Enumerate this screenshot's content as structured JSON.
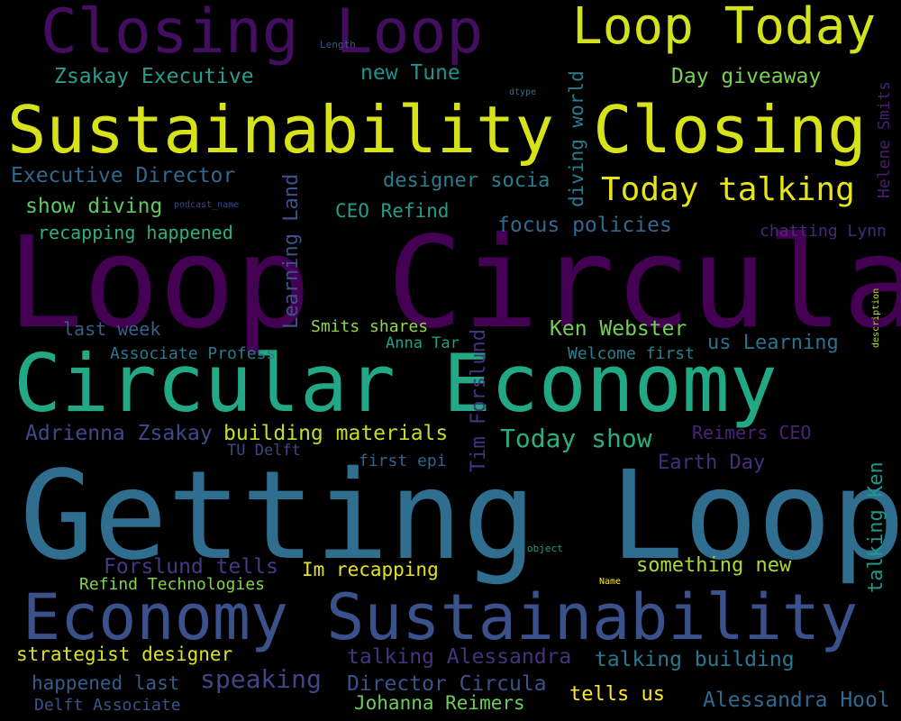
{
  "colors": {
    "background": "#000000",
    "palette": [
      "#440154",
      "#482777",
      "#3e4a89",
      "#31688e",
      "#26838f",
      "#1f9d8a",
      "#35b779",
      "#6ece58",
      "#b5de2b",
      "#fde725"
    ]
  },
  "words": [
    {
      "text": "Loop Circular",
      "color": "#440154",
      "vertical": false
    },
    {
      "text": "Getting Loop",
      "color": "#2f6e8e",
      "vertical": false
    },
    {
      "text": "Circular Economy",
      "color": "#22a884",
      "vertical": false
    },
    {
      "text": "Economy Sustainability",
      "color": "#3b518b",
      "vertical": false
    },
    {
      "text": "Sustainability Closing",
      "color": "#d8e219",
      "vertical": false
    },
    {
      "text": "Closing Loop",
      "color": "#440e60",
      "vertical": false
    },
    {
      "text": "Loop Today",
      "color": "#d2e21b",
      "vertical": false
    },
    {
      "text": "Today talking",
      "color": "#e7e419",
      "vertical": false
    },
    {
      "text": "Zsakay Executive",
      "color": "#2a9d8f",
      "vertical": false
    },
    {
      "text": "Length",
      "color": "#3b528b",
      "vertical": false
    },
    {
      "text": "new Tune",
      "color": "#21918c",
      "vertical": false
    },
    {
      "text": "Day giveaway",
      "color": "#7ad151",
      "vertical": false
    },
    {
      "text": "dtype",
      "color": "#2c728e",
      "vertical": false
    },
    {
      "text": "Executive Director",
      "color": "#31688e",
      "vertical": false
    },
    {
      "text": "designer socia",
      "color": "#287d8e",
      "vertical": false
    },
    {
      "text": "show diving",
      "color": "#5ec962",
      "vertical": false
    },
    {
      "text": "podcast_name",
      "color": "#3e4989",
      "vertical": false
    },
    {
      "text": "CEO Refind",
      "color": "#1f9e89",
      "vertical": false
    },
    {
      "text": "focus policies",
      "color": "#31688e",
      "vertical": false
    },
    {
      "text": "recapping happened",
      "color": "#2db27d",
      "vertical": false
    },
    {
      "text": "chatting Lynn",
      "color": "#482878",
      "vertical": false
    },
    {
      "text": "last week",
      "color": "#355f8d",
      "vertical": false
    },
    {
      "text": "Smits shares",
      "color": "#8fd744",
      "vertical": false
    },
    {
      "text": "Ken Webster",
      "color": "#73d056",
      "vertical": false
    },
    {
      "text": "Associate Profess",
      "color": "#2a788e",
      "vertical": false
    },
    {
      "text": "Anna Tar",
      "color": "#1fa088",
      "vertical": false
    },
    {
      "text": "Welcome first",
      "color": "#25838e",
      "vertical": false
    },
    {
      "text": "us Learning",
      "color": "#2c728e",
      "vertical": false
    },
    {
      "text": "Adrienna Zsakay",
      "color": "#3e4a89",
      "vertical": false
    },
    {
      "text": "building materials",
      "color": "#c2df23",
      "vertical": false
    },
    {
      "text": "Today show",
      "color": "#29af7f",
      "vertical": false
    },
    {
      "text": "Reimers CEO",
      "color": "#482475",
      "vertical": false
    },
    {
      "text": "TU Delft",
      "color": "#3f4788",
      "vertical": false
    },
    {
      "text": "first epi",
      "color": "#33638d",
      "vertical": false
    },
    {
      "text": "Earth Day",
      "color": "#472d7b",
      "vertical": false
    },
    {
      "text": "object",
      "color": "#1f978b",
      "vertical": false
    },
    {
      "text": "Forslund tells",
      "color": "#443983",
      "vertical": false
    },
    {
      "text": "Im recapping",
      "color": "#e5e419",
      "vertical": false
    },
    {
      "text": "something new",
      "color": "#a8db34",
      "vertical": false
    },
    {
      "text": "Refind Technologies",
      "color": "#84d44b",
      "vertical": false
    },
    {
      "text": "Name",
      "color": "#fde725",
      "vertical": false
    },
    {
      "text": "strategist designer",
      "color": "#dde318",
      "vertical": false
    },
    {
      "text": "talking Alessandra",
      "color": "#46337e",
      "vertical": false
    },
    {
      "text": "talking building",
      "color": "#2a788e",
      "vertical": false
    },
    {
      "text": "happened last",
      "color": "#365c8d",
      "vertical": false
    },
    {
      "text": "speaking",
      "color": "#414487",
      "vertical": false
    },
    {
      "text": "Director Circula",
      "color": "#3b528b",
      "vertical": false
    },
    {
      "text": "tells us",
      "color": "#fde725",
      "vertical": false
    },
    {
      "text": "Alessandra Hool",
      "color": "#31688e",
      "vertical": false
    },
    {
      "text": "Delft Associate",
      "color": "#3b528b",
      "vertical": false
    },
    {
      "text": "Johanna Reimers",
      "color": "#6ccd5a",
      "vertical": false
    },
    {
      "text": "diving world",
      "color": "#287d8e",
      "vertical": true
    },
    {
      "text": "Helene Smits",
      "color": "#481f70",
      "vertical": true
    },
    {
      "text": "Learning Land",
      "color": "#3b528b",
      "vertical": true
    },
    {
      "text": "Tim Forslund",
      "color": "#46327e",
      "vertical": true
    },
    {
      "text": "description",
      "color": "#b8de29",
      "vertical": true
    },
    {
      "text": "talking Ken",
      "color": "#1f988b",
      "vertical": true
    }
  ]
}
